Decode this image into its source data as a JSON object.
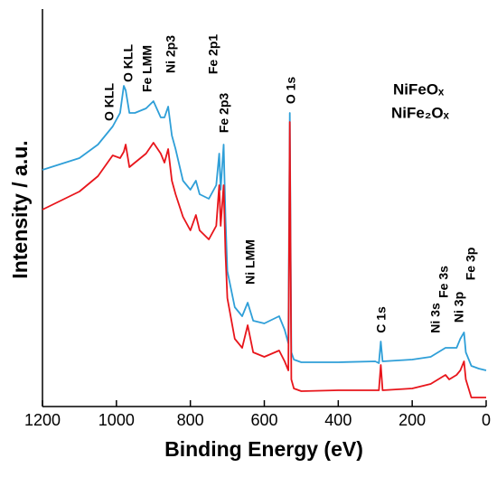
{
  "chart_data": {
    "type": "line",
    "x_label": "Binding Energy (eV)",
    "y_label": "Intensity / a.u.",
    "xlim": [
      1200,
      0
    ],
    "xticks": [
      1200,
      1000,
      800,
      600,
      400,
      200,
      0
    ],
    "ylim": [
      0,
      440
    ],
    "x": [
      1200,
      1100,
      1050,
      1010,
      990,
      980,
      975,
      965,
      950,
      920,
      900,
      880,
      870,
      860,
      850,
      840,
      820,
      800,
      785,
      775,
      750,
      730,
      722,
      718,
      710,
      705,
      700,
      680,
      660,
      645,
      630,
      600,
      560,
      545,
      535,
      531,
      527,
      520,
      500,
      400,
      300,
      290,
      285,
      280,
      200,
      150,
      110,
      100,
      80,
      70,
      60,
      55,
      40,
      20,
      0
    ],
    "series": [
      {
        "name": "NiFeOₓ",
        "color": "#2f9fd8",
        "values": [
          262,
          275,
          290,
          310,
          325,
          355,
          350,
          325,
          325,
          330,
          338,
          320,
          320,
          332,
          300,
          285,
          250,
          240,
          250,
          235,
          230,
          245,
          280,
          240,
          290,
          210,
          150,
          110,
          100,
          115,
          95,
          92,
          100,
          85,
          70,
          325,
          60,
          52,
          49,
          49,
          50,
          48,
          72,
          50,
          52,
          55,
          65,
          65,
          65,
          75,
          82,
          60,
          45,
          42,
          40
        ]
      },
      {
        "name": "NiFe₂Oₓ",
        "color": "#e8151b",
        "values": [
          218,
          238,
          255,
          278,
          275,
          282,
          290,
          265,
          270,
          280,
          292,
          280,
          270,
          285,
          250,
          235,
          210,
          195,
          212,
          195,
          185,
          200,
          245,
          200,
          245,
          170,
          120,
          75,
          65,
          90,
          60,
          55,
          62,
          50,
          40,
          315,
          30,
          20,
          17,
          18,
          18,
          18,
          46,
          18,
          20,
          25,
          35,
          30,
          35,
          40,
          50,
          30,
          10,
          10,
          10
        ]
      }
    ],
    "annotations": [
      "O KLL",
      "O KLL",
      "Fe LMM",
      "Ni 2p3",
      "Fe 2p1",
      "Fe 2p3",
      "O 1s",
      "Ni LMM",
      "C 1s",
      "Ni 3s",
      "Fe 3s",
      "Ni 3p",
      "Fe 3p"
    ]
  }
}
